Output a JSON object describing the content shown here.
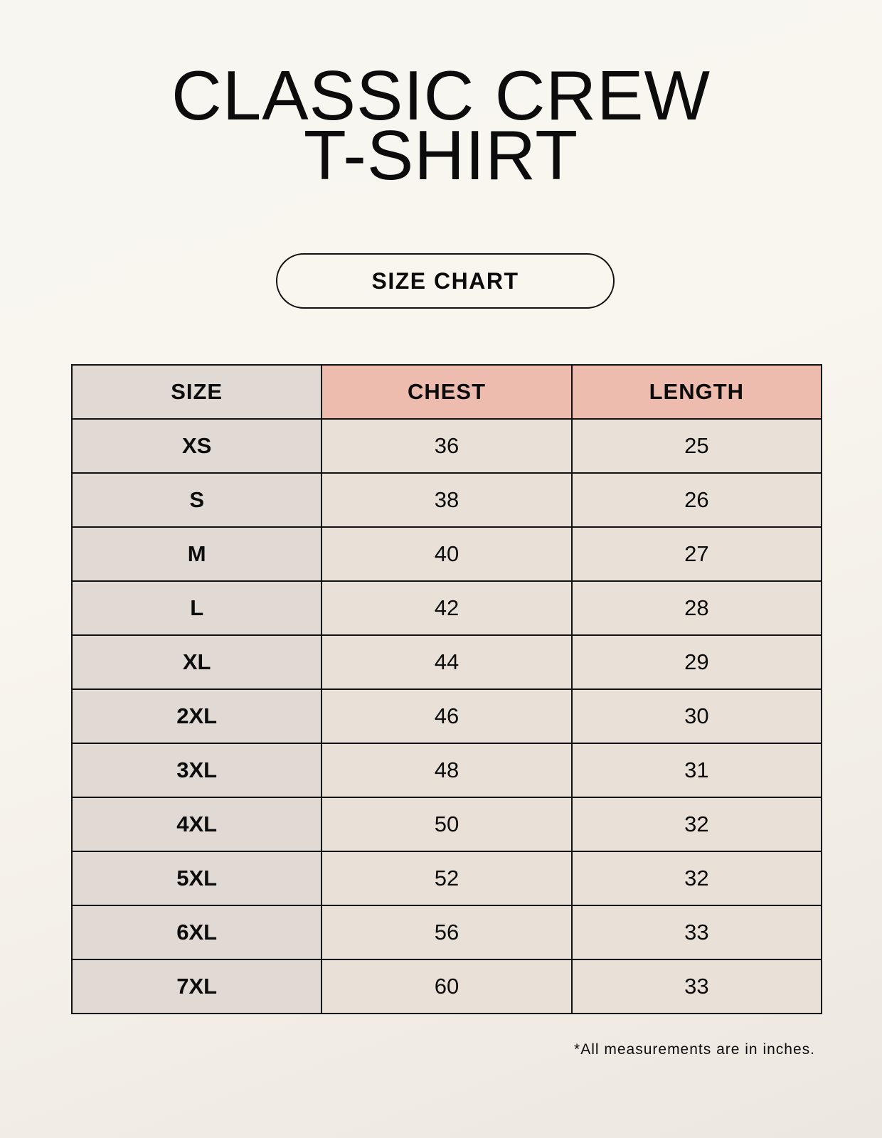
{
  "title_line1": "CLASSIC CREW",
  "title_line2": "T-SHIRT",
  "badge": "SIZE CHART",
  "table": {
    "headers": [
      "SIZE",
      "CHEST",
      "LENGTH"
    ],
    "rows": [
      [
        "XS",
        "36",
        "25"
      ],
      [
        "S",
        "38",
        "26"
      ],
      [
        "M",
        "40",
        "27"
      ],
      [
        "L",
        "42",
        "28"
      ],
      [
        "XL",
        "44",
        "29"
      ],
      [
        "2XL",
        "46",
        "30"
      ],
      [
        "3XL",
        "48",
        "31"
      ],
      [
        "4XL",
        "50",
        "32"
      ],
      [
        "5XL",
        "52",
        "32"
      ],
      [
        "6XL",
        "56",
        "33"
      ],
      [
        "7XL",
        "60",
        "33"
      ]
    ]
  },
  "footnote": "*All measurements are in inches.",
  "colors": {
    "size_column": "#e1d9d4",
    "header_accent": "#edbcae",
    "value_cells": "#e9e1d7"
  }
}
